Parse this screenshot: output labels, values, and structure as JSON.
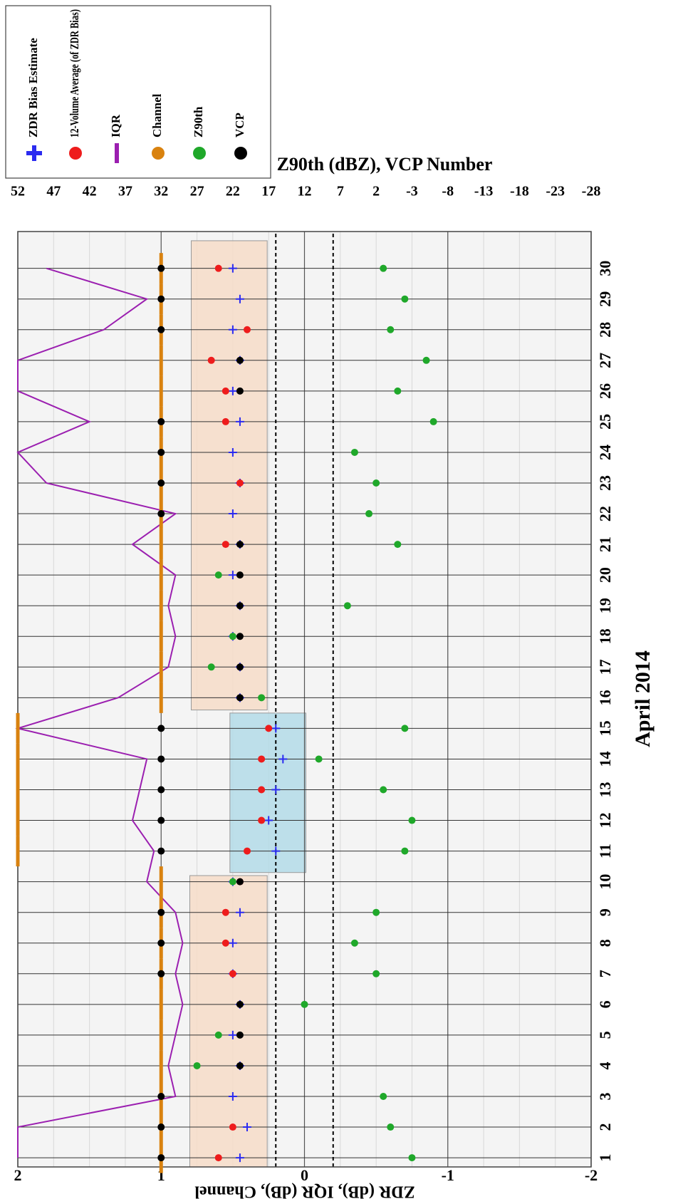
{
  "chart_data": {
    "type": "scatter",
    "rotation": -90,
    "x_label": "April 2014",
    "y_label": "ZDR (dB), IQR (dB), Channel",
    "y2_label": "Z90th (dBZ), VCP Number",
    "xlim": [
      0.7,
      31.2
    ],
    "xticks": [
      1,
      2,
      3,
      4,
      5,
      6,
      7,
      8,
      9,
      10,
      11,
      12,
      13,
      14,
      15,
      16,
      17,
      18,
      19,
      20,
      21,
      22,
      23,
      24,
      25,
      26,
      27,
      28,
      29,
      30
    ],
    "ylim": [
      -2,
      2
    ],
    "yticks": [
      -2,
      -1,
      0,
      1,
      2
    ],
    "y2lim": [
      -28,
      52
    ],
    "y2ticks": [
      -28,
      -23,
      -18,
      -13,
      -8,
      -3,
      2,
      7,
      12,
      17,
      22,
      27,
      32,
      37,
      42,
      47,
      52
    ],
    "grid": true,
    "reference_lines": [
      0.2,
      -0.2
    ],
    "shaded_regions": [
      {
        "x": [
          0.7,
          10.2
        ],
        "y": [
          0.26,
          0.8
        ],
        "color": "#f6dcc8"
      },
      {
        "x": [
          10.3,
          15.5
        ],
        "y": [
          -0.01,
          0.52
        ],
        "color": "#b3dbe8"
      },
      {
        "x": [
          15.6,
          30.9
        ],
        "y": [
          0.26,
          0.79
        ],
        "color": "#f6dcc8"
      }
    ],
    "x": [
      1,
      2,
      3,
      4,
      5,
      6,
      7,
      8,
      9,
      10,
      11,
      12,
      13,
      14,
      15,
      16,
      17,
      18,
      19,
      20,
      21,
      22,
      23,
      24,
      25,
      26,
      27,
      28,
      29,
      30
    ],
    "series": [
      {
        "name": "ZDR Bias Estimate",
        "color": "#2b2bf0",
        "marker": "plus",
        "values": [
          0.45,
          0.4,
          0.5,
          0.45,
          0.5,
          0.45,
          0.5,
          0.5,
          0.45,
          0.5,
          0.2,
          0.25,
          0.2,
          0.15,
          0.2,
          0.45,
          0.45,
          0.5,
          0.45,
          0.5,
          0.45,
          0.5,
          0.45,
          0.5,
          0.45,
          0.5,
          0.45,
          0.5,
          0.45,
          0.5
        ]
      },
      {
        "name": "12-Volume Average (of ZDR Bias)",
        "color": "#ee1c1c",
        "marker": "circle",
        "values": [
          0.6,
          0.5,
          null,
          null,
          null,
          null,
          0.5,
          0.55,
          0.55,
          0.45,
          0.4,
          0.3,
          0.3,
          0.3,
          0.25,
          null,
          null,
          null,
          null,
          null,
          0.55,
          null,
          0.45,
          null,
          0.55,
          0.55,
          0.65,
          0.4,
          null,
          0.6
        ]
      },
      {
        "name": "IQR",
        "color": "#9b1fb0",
        "marker": "line",
        "values": [
          2,
          2,
          0.9,
          0.95,
          0.9,
          0.85,
          0.9,
          0.85,
          0.9,
          1.1,
          1.05,
          1.2,
          1.15,
          1.1,
          2,
          1.3,
          0.95,
          0.9,
          0.95,
          0.9,
          1.2,
          0.9,
          1.8,
          2,
          1.5,
          2,
          2,
          1.4,
          1.1,
          1.8
        ]
      },
      {
        "name": "Channel",
        "color": "#d9820f",
        "marker": "step",
        "values": [
          1,
          1,
          1,
          1,
          1,
          1,
          1,
          1,
          1,
          1,
          2,
          2,
          2,
          2,
          2,
          1,
          1,
          1,
          1,
          1,
          1,
          1,
          1,
          1,
          1,
          1,
          1,
          1,
          1,
          1
        ]
      },
      {
        "name": "Z90th",
        "color": "#1fa82a",
        "marker": "circle",
        "axis": "y2",
        "values": [
          -3,
          0,
          1,
          27,
          24,
          12,
          2,
          5,
          2,
          22,
          -2,
          -3,
          1,
          10,
          -2,
          18,
          25,
          22,
          6,
          24,
          -1,
          3,
          2,
          5,
          -6,
          -1,
          -5,
          0,
          -2,
          1
        ]
      },
      {
        "name": "VCP",
        "color": "#000000",
        "marker": "circle",
        "axis": "y2",
        "values": [
          32,
          32,
          32,
          21,
          21,
          21,
          32,
          32,
          32,
          21,
          32,
          32,
          32,
          32,
          32,
          21,
          21,
          21,
          21,
          21,
          21,
          32,
          32,
          32,
          32,
          21,
          21,
          32,
          32,
          32
        ]
      }
    ]
  }
}
